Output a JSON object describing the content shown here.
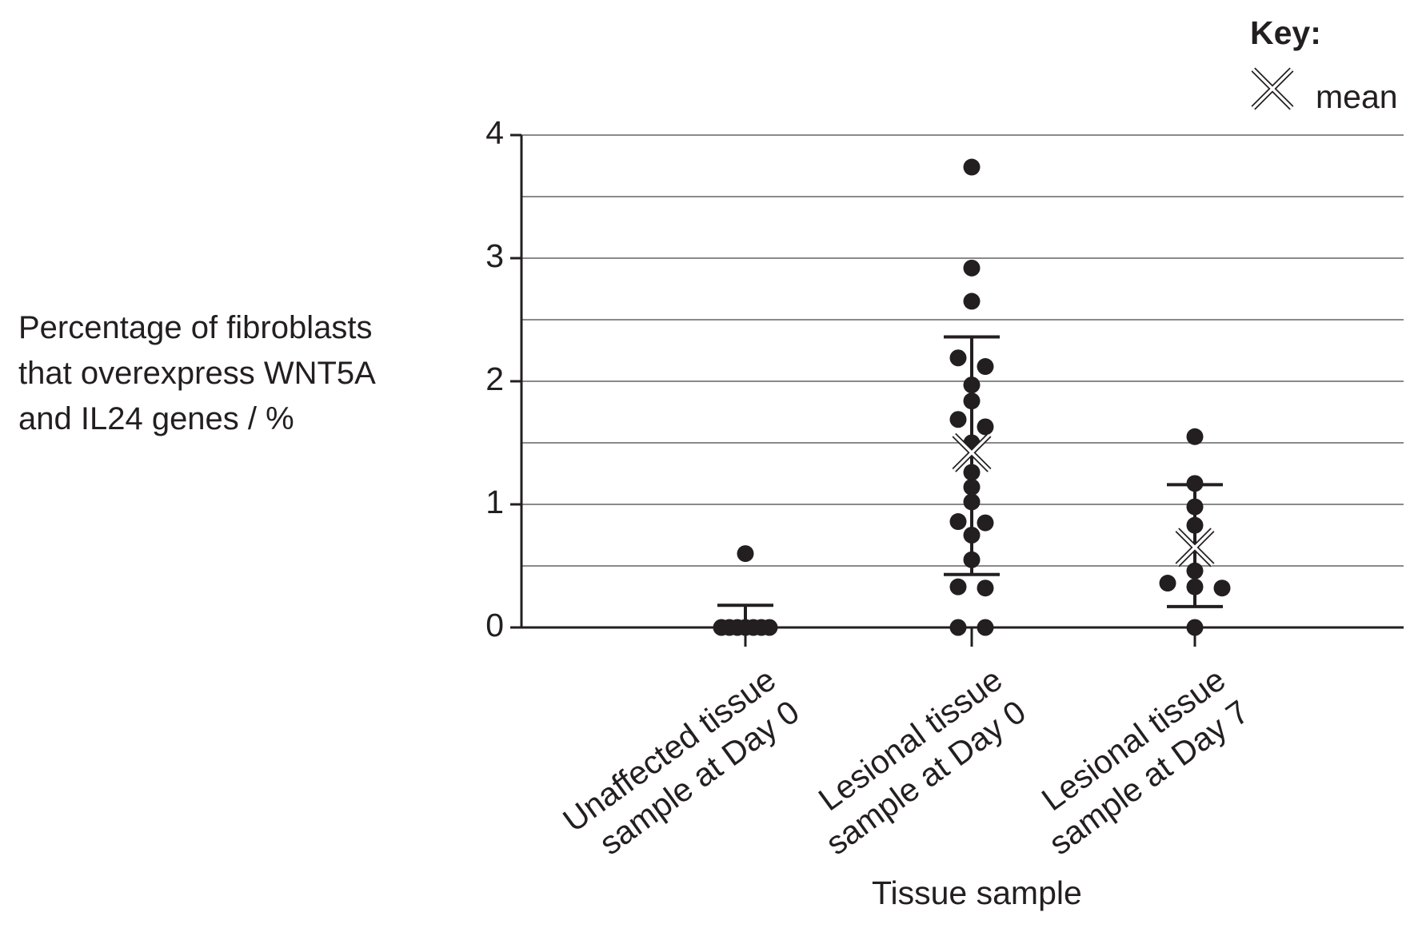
{
  "chart_data": {
    "type": "dotplot",
    "ylabel": "Percentage of fibroblasts\nthat overexpress WNT5A\nand IL24 genes / %",
    "xlabel": "Tissue sample",
    "legend": {
      "title": "Key:",
      "mean_label": "mean"
    },
    "categories": [
      "Unaffected tissue\nsample at Day 0",
      "Lesional tissue\nsample at Day 0",
      "Lesional tissue\nsample at Day 7"
    ],
    "points": [
      [
        0.6,
        0,
        0,
        0,
        0,
        0,
        0,
        0
      ],
      [
        3.74,
        2.92,
        2.65,
        2.19,
        2.12,
        1.97,
        1.84,
        1.69,
        1.63,
        1.5,
        1.26,
        1.14,
        1.02,
        0.86,
        0.85,
        0.75,
        0.55,
        0.32,
        0.33,
        0,
        0
      ],
      [
        1.55,
        1.17,
        0.98,
        0.83,
        0.46,
        0.36,
        0.32,
        0.33,
        0
      ]
    ],
    "means": [
      null,
      1.42,
      0.65
    ],
    "err_low": [
      0,
      0.43,
      0.17
    ],
    "err_high": [
      0.18,
      2.36,
      1.16
    ],
    "ylim": [
      0,
      4
    ],
    "yticks": [
      0,
      1,
      2,
      3,
      4
    ],
    "minor_grid": [
      0.5,
      1.5,
      2.5,
      3.5
    ],
    "grid": true,
    "color": "#231f20"
  }
}
